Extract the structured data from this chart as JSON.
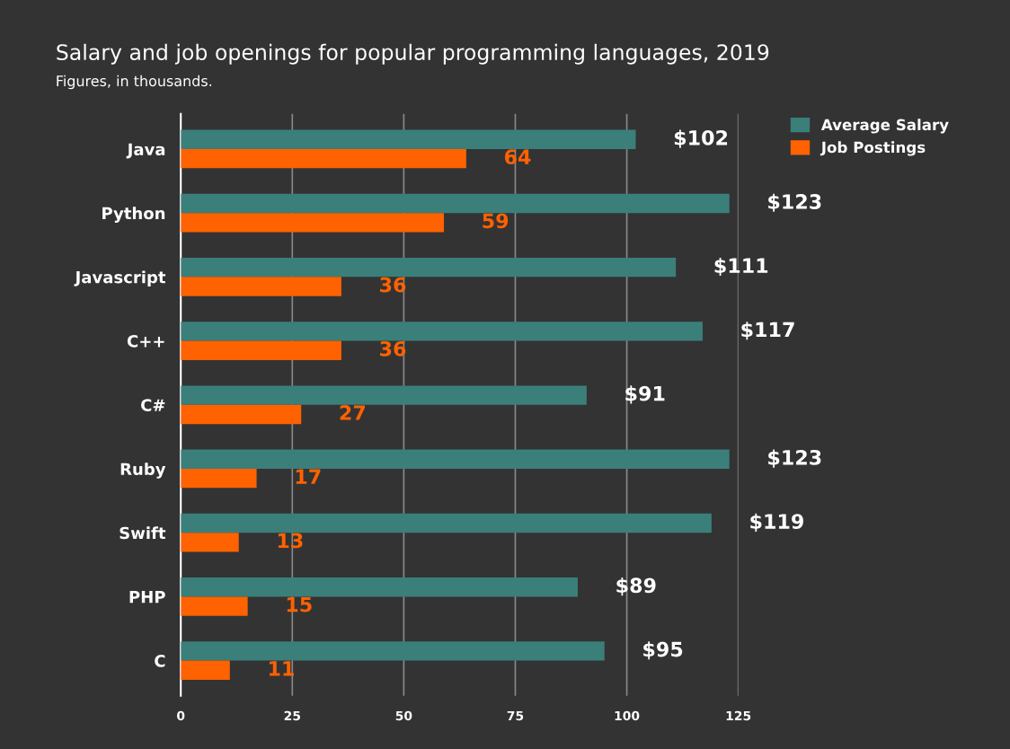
{
  "chart_data": {
    "type": "bar",
    "orientation": "horizontal",
    "title": "Salary and job openings for popular programming languages, 2019",
    "subtitle": "Figures, in thousands.",
    "categories": [
      "Java",
      "Python",
      "Javascript",
      "C++",
      "C#",
      "Ruby",
      "Swift",
      "PHP",
      "C"
    ],
    "series": [
      {
        "name": "Average Salary",
        "color": "#3a7f7a",
        "values": [
          102,
          123,
          111,
          117,
          91,
          123,
          119,
          89,
          95
        ],
        "value_labels": [
          "$102",
          "$123",
          "$111",
          "$117",
          "$91",
          "$123",
          "$119",
          "$89",
          "$95"
        ]
      },
      {
        "name": "Job Postings",
        "color": "#ff6200",
        "values": [
          64,
          59,
          36,
          36,
          27,
          17,
          13,
          15,
          11
        ],
        "value_labels": [
          "64",
          "59",
          "36",
          "36",
          "27",
          "17",
          "13",
          "15",
          "11"
        ]
      }
    ],
    "xlim": [
      0,
      125
    ],
    "xticks": [
      0,
      25,
      50,
      75,
      100,
      125
    ],
    "grid": "x",
    "legend": "top right"
  }
}
